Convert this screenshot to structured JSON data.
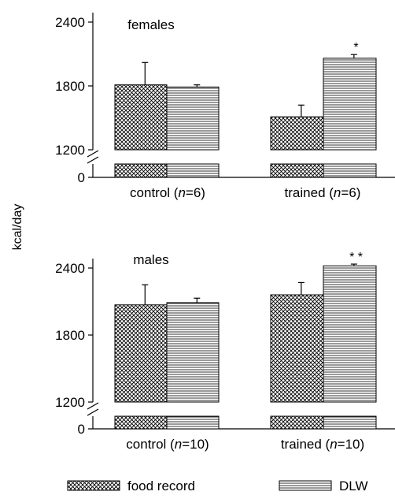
{
  "y_axis_label": "kcal/day",
  "legend": {
    "food_record": "food record",
    "dlw": "DLW"
  },
  "colors": {
    "ink": "#000000",
    "background": "#ffffff"
  },
  "chart_data": [
    {
      "type": "bar",
      "title": "females",
      "categories": [
        "control",
        "trained"
      ],
      "category_n": [
        "6",
        "6"
      ],
      "series": [
        {
          "name": "food record",
          "values": [
            1810,
            1510
          ],
          "error": [
            210,
            110
          ]
        },
        {
          "name": "DLW",
          "values": [
            1790,
            2060
          ],
          "error": [
            20,
            35
          ]
        }
      ],
      "significance": [
        "",
        "*"
      ],
      "ylim": [
        1200,
        2400
      ],
      "yticks": [
        1200,
        1800,
        2400
      ],
      "axis_break": true,
      "lower_tick": 0
    },
    {
      "type": "bar",
      "title": "males",
      "categories": [
        "control",
        "trained"
      ],
      "category_n": [
        "10",
        "10"
      ],
      "series": [
        {
          "name": "food record",
          "values": [
            2070,
            2160
          ],
          "error": [
            180,
            110
          ]
        },
        {
          "name": "DLW",
          "values": [
            2090,
            2420
          ],
          "error": [
            40,
            15
          ]
        }
      ],
      "significance": [
        "",
        "**"
      ],
      "ylim": [
        1200,
        2400
      ],
      "yticks": [
        1200,
        1800,
        2400
      ],
      "axis_break": true,
      "lower_tick": 0
    }
  ]
}
